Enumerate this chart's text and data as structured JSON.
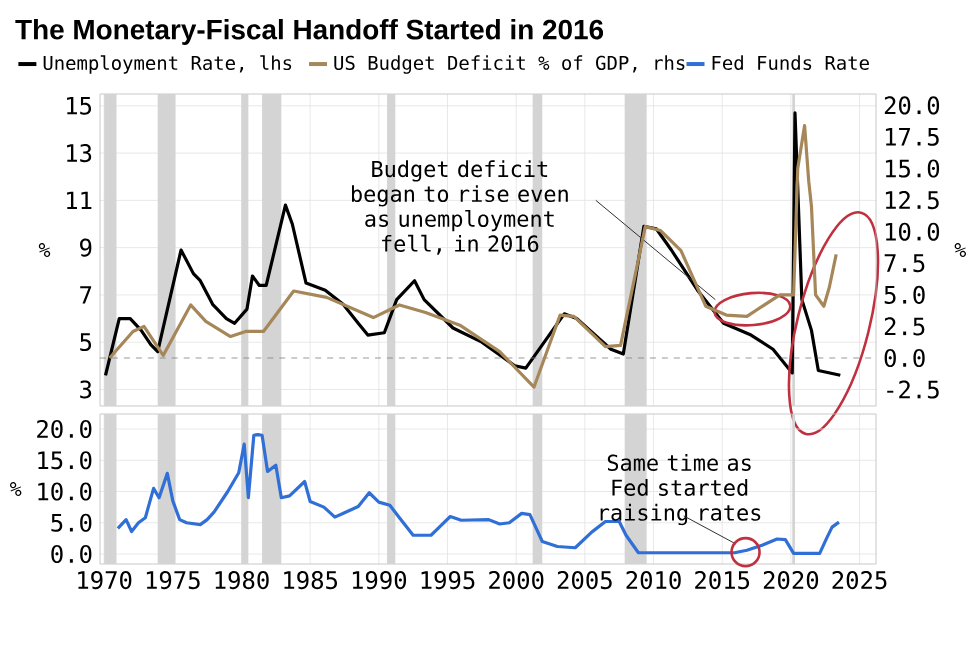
{
  "chart_data": [
    {
      "type": "line",
      "title": "The Monetary-Fiscal Handoff Started in 2016",
      "ylabel": "%",
      "y2label": "%",
      "xlim": [
        1969.7,
        2026.2
      ],
      "xticks": [
        1970,
        1975,
        1980,
        1985,
        1990,
        1995,
        2000,
        2005,
        2010,
        2015,
        2020,
        2025
      ],
      "ylim": [
        2.3,
        15.5
      ],
      "yticks": [
        3,
        5,
        7,
        9,
        11,
        13,
        15
      ],
      "y2lim": [
        -3.8,
        20.9
      ],
      "y2ticks": [
        {
          "value": -2.5,
          "label": "-2.5"
        },
        {
          "value": 0,
          "label": "0.0"
        },
        {
          "value": 2.5,
          "label": "2.5"
        },
        {
          "value": 5,
          "label": "5.0"
        },
        {
          "value": 7.5,
          "label": "7.5"
        },
        {
          "value": 10,
          "label": "10.0"
        },
        {
          "value": 12.5,
          "label": "12.5"
        },
        {
          "value": 15,
          "label": "15.0"
        },
        {
          "value": 17.5,
          "label": "17.5"
        },
        {
          "value": 20,
          "label": "20.0"
        }
      ],
      "tick_labels": "y",
      "grid": true,
      "legend": "top",
      "series": [
        {
          "name": "Unemployment Rate, lhs",
          "color": "#000000",
          "axis": "y",
          "x": [
            1970.1,
            1971.1,
            1971.9,
            1972.7,
            1973.4,
            1973.9,
            1975.6,
            1976.5,
            1977.0,
            1977.9,
            1978.9,
            1979.5,
            1980.4,
            1980.8,
            1981.3,
            1981.8,
            1983.2,
            1983.7,
            1984.7,
            1986.1,
            1987.4,
            1988.5,
            1989.2,
            1990.4,
            1991.3,
            1992.6,
            1993.3,
            1995.4,
            1997.5,
            1999.9,
            2000.7,
            2003.5,
            2004.4,
            2006.9,
            2007.8,
            2009.3,
            2010.2,
            2011.3,
            2013.2,
            2015.1,
            2017.1,
            2018.7,
            2020.1,
            2020.3,
            2020.8,
            2021.5,
            2022.0,
            2023.6
          ],
          "values": [
            3.6,
            6.0,
            6.0,
            5.5,
            4.9,
            4.6,
            8.9,
            7.9,
            7.6,
            6.6,
            6.0,
            5.8,
            6.4,
            7.8,
            7.4,
            7.4,
            10.8,
            10.0,
            7.5,
            7.2,
            6.6,
            5.8,
            5.3,
            5.4,
            6.8,
            7.6,
            6.8,
            5.6,
            5.0,
            4.0,
            3.9,
            6.2,
            6.0,
            4.7,
            4.5,
            9.9,
            9.8,
            8.9,
            7.2,
            5.8,
            5.3,
            4.7,
            3.7,
            14.7,
            6.8,
            5.5,
            3.8,
            3.6
          ]
        },
        {
          "name": "US Budget Deficit % of GDP, rhs",
          "color": "#a5875a",
          "axis": "y2",
          "x": [
            1970.4,
            1972.1,
            1972.9,
            1974.3,
            1976.3,
            1977.4,
            1979.2,
            1980.3,
            1981.6,
            1983.8,
            1986.2,
            1989.6,
            1991.5,
            1993.4,
            1995.9,
            1998.8,
            2001.3,
            2003.2,
            2004.2,
            2006.5,
            2007.6,
            2009.4,
            2010.5,
            2012.0,
            2013.8,
            2015.3,
            2016.8,
            2019.2,
            2020.2,
            2020.5,
            2021.0,
            2021.3,
            2021.5,
            2021.8,
            2022.4,
            2022.8,
            2023.3
          ],
          "values": [
            0.0,
            2.1,
            2.5,
            0.2,
            4.2,
            2.9,
            1.7,
            2.1,
            2.1,
            5.3,
            4.8,
            3.2,
            4.2,
            3.6,
            2.6,
            0.5,
            -2.3,
            3.4,
            3.3,
            0.9,
            1.0,
            10.4,
            10.1,
            8.5,
            4.1,
            3.4,
            3.3,
            5.0,
            5.0,
            15.0,
            18.4,
            14.0,
            12.0,
            5.0,
            4.1,
            5.6,
            8.2
          ]
        }
      ],
      "ref_lines": [
        {
          "axis": "y2",
          "value": 0,
          "color": "#808080",
          "line_style": "dashed"
        }
      ],
      "bands": [
        {
          "axis": "x",
          "from": 1970.0,
          "to": 1970.9,
          "color": "#d4d4d4"
        },
        {
          "axis": "x",
          "from": 1973.9,
          "to": 1975.2,
          "color": "#d4d4d4"
        },
        {
          "axis": "x",
          "from": 1980.0,
          "to": 1980.5,
          "color": "#d4d4d4"
        },
        {
          "axis": "x",
          "from": 1981.5,
          "to": 1982.9,
          "color": "#d4d4d4"
        },
        {
          "axis": "x",
          "from": 1990.6,
          "to": 1991.2,
          "color": "#d4d4d4"
        },
        {
          "axis": "x",
          "from": 2001.2,
          "to": 2001.9,
          "color": "#d4d4d4"
        },
        {
          "axis": "x",
          "from": 2007.9,
          "to": 2009.5,
          "color": "#d4d4d4"
        },
        {
          "axis": "x",
          "from": 2020.1,
          "to": 2020.3,
          "color": "#d4d4d4"
        }
      ],
      "annotations": [
        {
          "text": "Budget deficit began to rise even as unemployment fell, in 2016",
          "x": 2014.5,
          "y": 6.8
        }
      ]
    },
    {
      "type": "line",
      "ylabel": "%",
      "xlim": [
        1969.7,
        2026.2
      ],
      "xticks": [
        1970,
        1975,
        1980,
        1985,
        1990,
        1995,
        2000,
        2005,
        2010,
        2015,
        2020,
        2025
      ],
      "ylim": [
        -1.6,
        22.4
      ],
      "yticks": [
        {
          "value": 0,
          "label": "0.0"
        },
        {
          "value": 5,
          "label": "5.0"
        },
        {
          "value": 10,
          "label": "10.0"
        },
        {
          "value": 15,
          "label": "15.0"
        },
        {
          "value": 20,
          "label": "20.0"
        }
      ],
      "grid": true,
      "legend": "top",
      "series": [
        {
          "name": "Fed Funds Rate",
          "color": "#2f6fd6",
          "x": [
            1971.0,
            1971.6,
            1972.0,
            1972.5,
            1973.0,
            1973.6,
            1974.0,
            1974.6,
            1975.0,
            1975.5,
            1976.0,
            1977.0,
            1977.5,
            1978.0,
            1979.0,
            1979.8,
            1980.2,
            1980.5,
            1980.9,
            1981.2,
            1981.5,
            1981.9,
            1982.5,
            1982.9,
            1983.5,
            1984.6,
            1985.0,
            1986.0,
            1986.8,
            1987.5,
            1988.5,
            1989.3,
            1990.0,
            1990.8,
            1991.5,
            1992.5,
            1993.8,
            1994.5,
            1995.2,
            1996.0,
            1998.0,
            1998.8,
            1999.5,
            2000.4,
            2001.0,
            2001.9,
            2003.0,
            2004.3,
            2005.5,
            2006.5,
            2007.5,
            2008.0,
            2008.9,
            2015.9,
            2016.8,
            2017.9,
            2019.0,
            2019.6,
            2020.2,
            2022.1,
            2022.6,
            2023.0,
            2023.5
          ],
          "values": [
            4.1,
            5.5,
            3.6,
            5.0,
            5.8,
            10.5,
            9.0,
            12.9,
            8.5,
            5.5,
            5.0,
            4.7,
            5.5,
            6.7,
            10.0,
            13.0,
            17.6,
            9.0,
            19.0,
            19.1,
            19.0,
            13.2,
            14.2,
            9.0,
            9.3,
            11.6,
            8.4,
            7.5,
            5.9,
            6.6,
            7.6,
            9.8,
            8.3,
            7.8,
            5.8,
            3.0,
            3.0,
            4.5,
            6.0,
            5.4,
            5.5,
            4.8,
            5.0,
            6.5,
            6.3,
            2.0,
            1.2,
            1.0,
            3.5,
            5.2,
            5.2,
            3.0,
            0.2,
            0.2,
            0.6,
            1.4,
            2.4,
            2.3,
            0.1,
            0.1,
            2.5,
            4.3,
            5.1
          ]
        }
      ],
      "bands": [
        {
          "axis": "x",
          "from": 1970.0,
          "to": 1970.9,
          "color": "#d4d4d4"
        },
        {
          "axis": "x",
          "from": 1973.9,
          "to": 1975.2,
          "color": "#d4d4d4"
        },
        {
          "axis": "x",
          "from": 1980.0,
          "to": 1980.5,
          "color": "#d4d4d4"
        },
        {
          "axis": "x",
          "from": 1981.5,
          "to": 1982.9,
          "color": "#d4d4d4"
        },
        {
          "axis": "x",
          "from": 1990.6,
          "to": 1991.2,
          "color": "#d4d4d4"
        },
        {
          "axis": "x",
          "from": 2001.2,
          "to": 2001.9,
          "color": "#d4d4d4"
        },
        {
          "axis": "x",
          "from": 2007.9,
          "to": 2009.5,
          "color": "#d4d4d4"
        },
        {
          "axis": "x",
          "from": 2020.1,
          "to": 2020.3,
          "color": "#d4d4d4"
        }
      ],
      "annotations": [
        {
          "text": "Same time as Fed started raising rates",
          "x": 2016.0,
          "y": 1.6
        }
      ]
    }
  ]
}
